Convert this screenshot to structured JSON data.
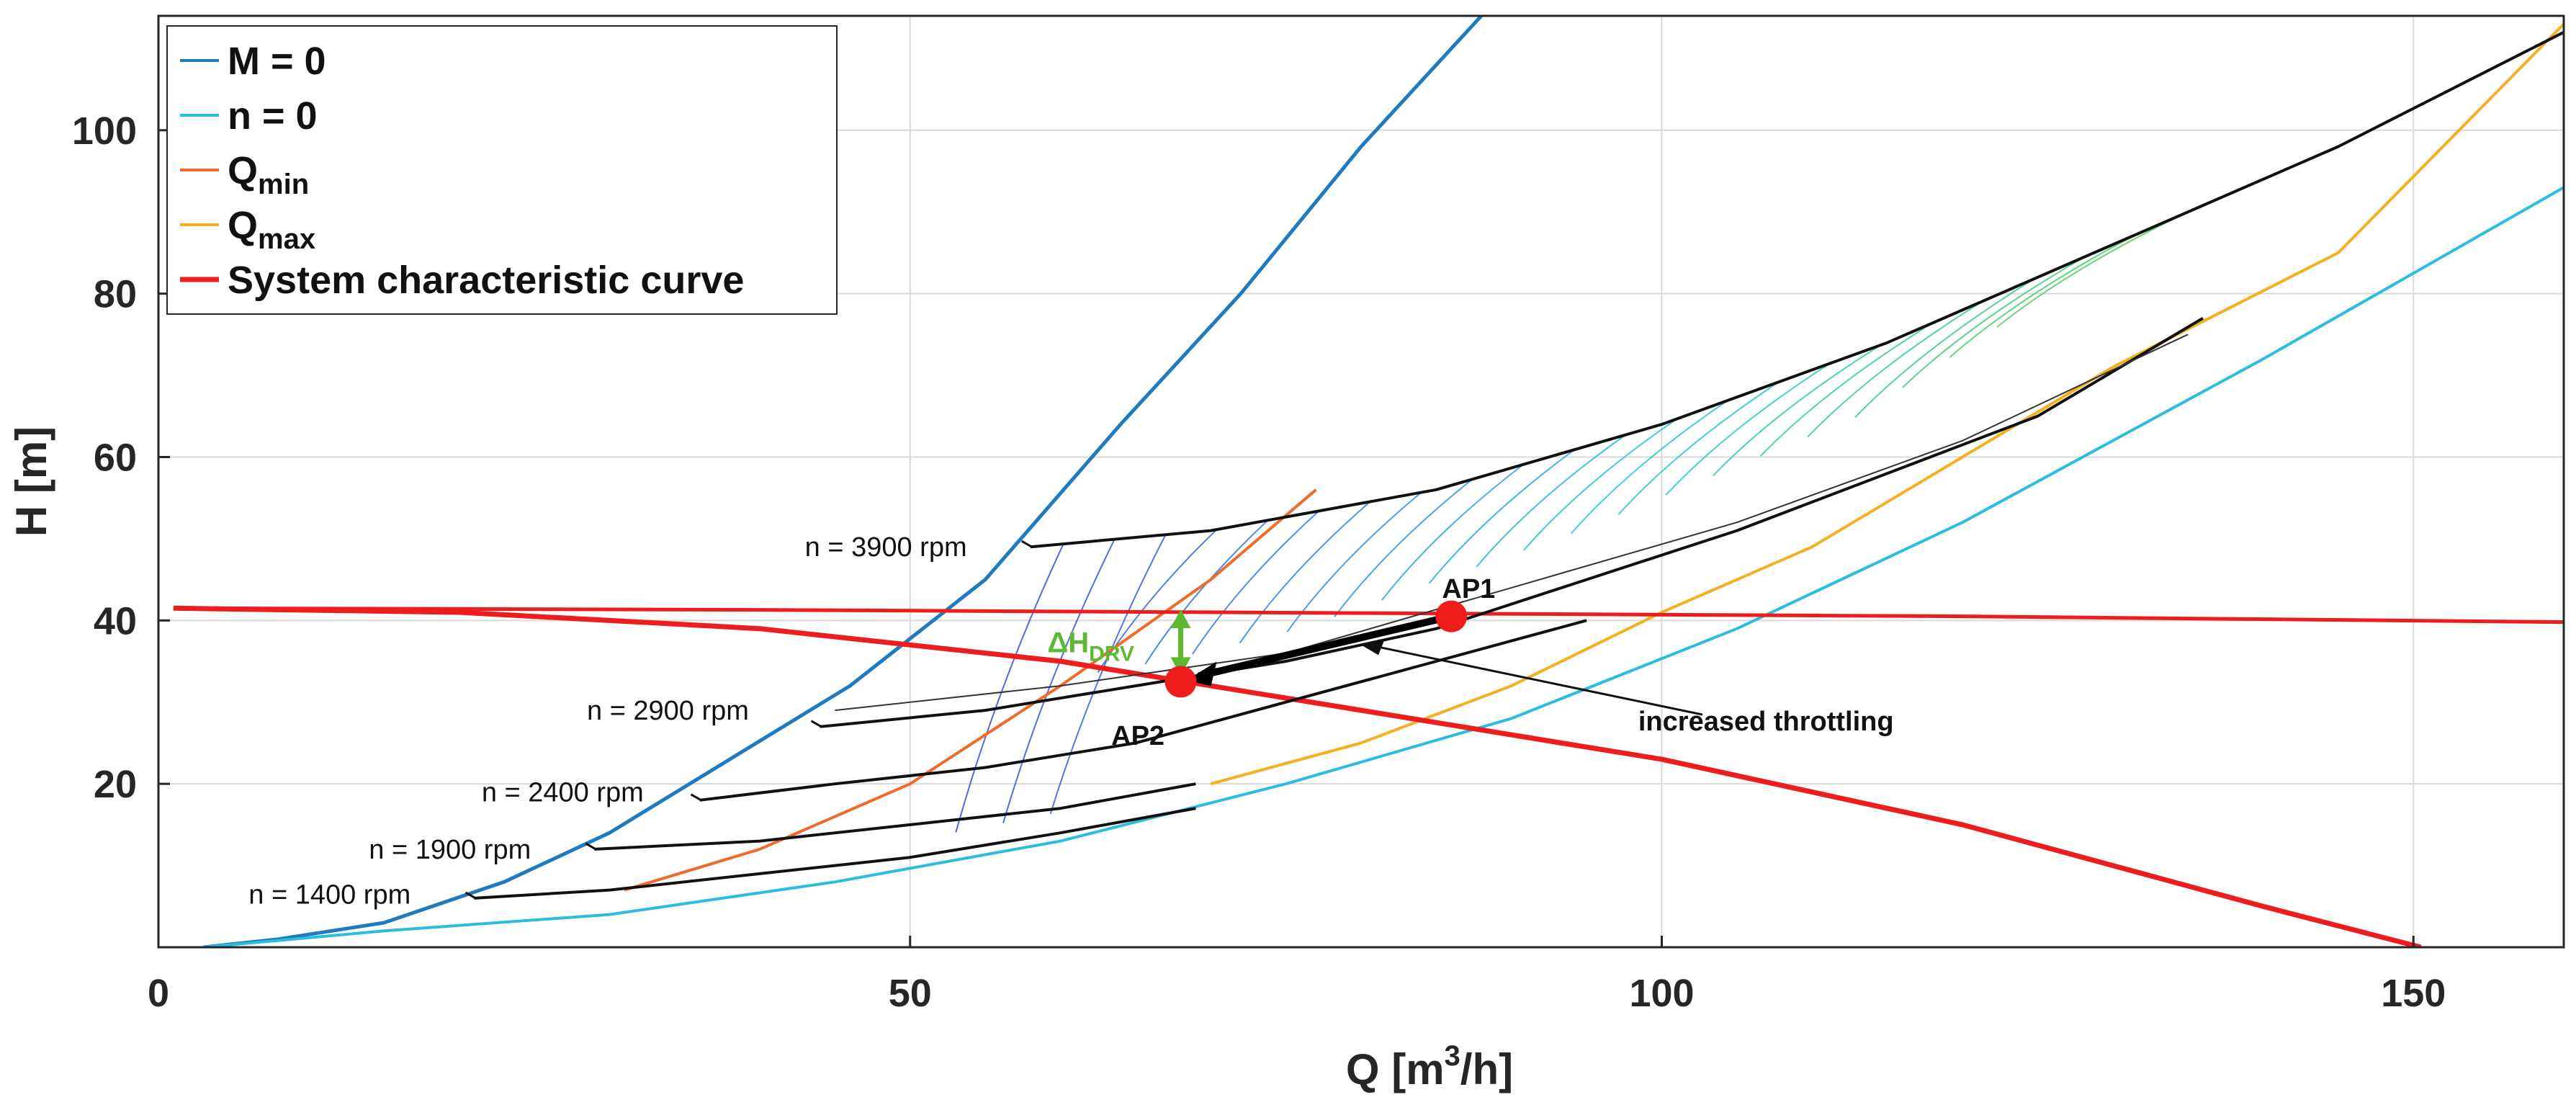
{
  "chart_data": {
    "type": "line",
    "xlabel": "Q [m",
    "xlabel_sup": "3",
    "xlabel_tail": "/h]",
    "ylabel": "H [m]",
    "xlim": [
      0,
      160
    ],
    "ylim": [
      0,
      114
    ],
    "xticks": [
      0,
      50,
      100,
      150
    ],
    "yticks": [
      20,
      40,
      60,
      80,
      100
    ],
    "grid": true,
    "legend": {
      "placement": "top-left",
      "entries": [
        {
          "key": "m0",
          "label": "M = 0",
          "sub": "",
          "color": "#1f7bbf"
        },
        {
          "key": "n0",
          "label": "n = 0",
          "sub": "",
          "color": "#2bbde0"
        },
        {
          "key": "qmin",
          "label": "Q",
          "sub": "min",
          "color": "#f06a2a"
        },
        {
          "key": "qmax",
          "label": "Q",
          "sub": "max",
          "color": "#f5b021"
        },
        {
          "key": "sys",
          "label": "System characteristic curve",
          "sub": "",
          "color": "#ee1c1c"
        }
      ]
    },
    "series": [
      {
        "key": "m0",
        "color": "#1f7bbf",
        "width": 5,
        "x": [
          3,
          8,
          15,
          23,
          30,
          38,
          46,
          55,
          64,
          72,
          80,
          88
        ],
        "y": [
          0,
          1,
          3,
          8,
          14,
          23,
          32,
          45,
          64,
          80,
          98,
          114
        ]
      },
      {
        "key": "n0",
        "color": "#2bbde0",
        "width": 4,
        "x": [
          3,
          15,
          30,
          45,
          60,
          75,
          90,
          105,
          120,
          140,
          160
        ],
        "y": [
          0,
          2,
          4,
          8,
          13,
          20,
          28,
          39,
          52,
          72,
          93
        ]
      },
      {
        "key": "qmin",
        "color": "#f06a2a",
        "width": 4,
        "x": [
          31,
          40,
          50,
          60,
          70,
          77
        ],
        "y": [
          7,
          12,
          20,
          32,
          45,
          56
        ]
      },
      {
        "key": "qmax",
        "color": "#f5b021",
        "width": 4,
        "x": [
          70,
          80,
          90,
          100,
          110,
          120,
          130,
          145,
          160
        ],
        "y": [
          20,
          25,
          32,
          41,
          49,
          60,
          71,
          85,
          113
        ]
      },
      {
        "key": "sys",
        "color": "#ee1c1c",
        "width": 7,
        "x": [
          1,
          20,
          40,
          60,
          80,
          100,
          120,
          140,
          150.5
        ],
        "y": [
          41.5,
          41,
          39,
          35,
          29,
          23,
          15,
          5,
          0
        ]
      },
      {
        "key": "sys2",
        "color": "#ee1c1c",
        "width": 5,
        "x": [
          1,
          40,
          80,
          120,
          160
        ],
        "y": [
          41.5,
          41.3,
          40.9,
          40.5,
          39.8
        ]
      },
      {
        "key": "n3900",
        "color": "#111111",
        "width": 4,
        "x": [
          58,
          70,
          85,
          100,
          115,
          130,
          145,
          160
        ],
        "y": [
          49,
          51,
          56,
          64,
          74,
          86,
          98,
          112
        ]
      },
      {
        "key": "n2900",
        "color": "#111111",
        "width": 4,
        "x": [
          44,
          55,
          65,
          75,
          85,
          95,
          105,
          115,
          125,
          136
        ],
        "y": [
          27,
          29,
          32,
          35,
          39,
          45,
          51,
          58,
          65,
          77
        ]
      },
      {
        "key": "n2400",
        "color": "#111111",
        "width": 4,
        "x": [
          36,
          45,
          55,
          65,
          75,
          85,
          95
        ],
        "y": [
          18,
          20,
          22,
          25,
          30,
          35,
          40
        ]
      },
      {
        "key": "n1900",
        "color": "#111111",
        "width": 4,
        "x": [
          29,
          40,
          50,
          60,
          69
        ],
        "y": [
          12,
          13,
          15,
          17,
          20
        ]
      },
      {
        "key": "n1400",
        "color": "#111111",
        "width": 4,
        "x": [
          21,
          30,
          40,
          50,
          60,
          69
        ],
        "y": [
          6,
          7,
          9,
          11,
          14,
          17
        ]
      },
      {
        "key": "thin1",
        "color": "#333333",
        "width": 2,
        "x": [
          45,
          60,
          75,
          90,
          105,
          120,
          135
        ],
        "y": [
          29,
          32,
          36,
          44,
          52,
          62,
          75
        ]
      }
    ],
    "speed_labels": [
      {
        "text": "n = 3900 rpm",
        "x": 43,
        "y": 49,
        "lx1": 58,
        "ly1": 49
      },
      {
        "text": "n = 2900  rpm",
        "x": 28.5,
        "y": 29,
        "lx1": 44,
        "ly1": 27
      },
      {
        "text": "n = 2400 rpm",
        "x": 21.5,
        "y": 19,
        "lx1": 36,
        "ly1": 18
      },
      {
        "text": "n = 1900 rpm",
        "x": 14,
        "y": 12,
        "lx1": 29,
        "ly1": 12
      },
      {
        "text": "n = 1400 rpm",
        "x": 6,
        "y": 6.5,
        "lx1": 21,
        "ly1": 6
      }
    ],
    "points": [
      {
        "label": "AP1",
        "x": 86,
        "y": 40.5,
        "lx": 85,
        "ly": 44
      },
      {
        "label": "AP2",
        "x": 68,
        "y": 32.5,
        "lx": 63,
        "ly": 26
      }
    ],
    "delta_h": {
      "label": "ΔH",
      "sub": "DRV",
      "x": 68,
      "y1": 32.5,
      "y2": 41,
      "color": "#5fb832"
    },
    "throttling": {
      "text": "increased throttling",
      "tx": 97,
      "ty": 29,
      "ax1": 96,
      "ay1": 29,
      "ax2": 80,
      "ay2": 37
    }
  }
}
